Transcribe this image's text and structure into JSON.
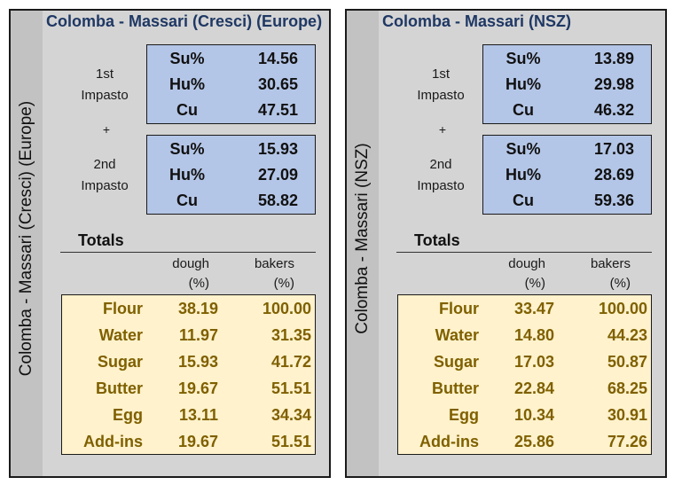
{
  "panels": [
    {
      "title": "Colomba - Massari (Cresci) (Europe)",
      "side_label": "Colomba - Massari (Cresci) (Europe)",
      "impasto1": {
        "label_line1": "1st",
        "label_line2": "Impasto",
        "rows": [
          {
            "key": "Su%",
            "value": "14.56"
          },
          {
            "key": "Hu%",
            "value": "30.65"
          },
          {
            "key": "Cu",
            "value": "47.51"
          }
        ]
      },
      "plus": "+",
      "impasto2": {
        "label_line1": "2nd",
        "label_line2": "Impasto",
        "rows": [
          {
            "key": "Su%",
            "value": "15.93"
          },
          {
            "key": "Hu%",
            "value": "27.09"
          },
          {
            "key": "Cu",
            "value": "58.82"
          }
        ]
      },
      "totals_label": "Totals",
      "col_dough_line1": "dough",
      "col_dough_line2": "(%)",
      "col_bakers_line1": "bakers",
      "col_bakers_line2": "(%)",
      "totals": [
        {
          "name": "Flour",
          "dough": "38.19",
          "bakers": "100.00"
        },
        {
          "name": "Water",
          "dough": "11.97",
          "bakers": "31.35"
        },
        {
          "name": "Sugar",
          "dough": "15.93",
          "bakers": "41.72"
        },
        {
          "name": "Butter",
          "dough": "19.67",
          "bakers": "51.51"
        },
        {
          "name": "Egg",
          "dough": "13.11",
          "bakers": "34.34"
        },
        {
          "name": "Add-ins",
          "dough": "19.67",
          "bakers": "51.51"
        }
      ]
    },
    {
      "title": "Colomba - Massari (NSZ)",
      "side_label": "Colomba - Massari (NSZ)",
      "impasto1": {
        "label_line1": "1st",
        "label_line2": "Impasto",
        "rows": [
          {
            "key": "Su%",
            "value": "13.89"
          },
          {
            "key": "Hu%",
            "value": "29.98"
          },
          {
            "key": "Cu",
            "value": "46.32"
          }
        ]
      },
      "plus": "+",
      "impasto2": {
        "label_line1": "2nd",
        "label_line2": "Impasto",
        "rows": [
          {
            "key": "Su%",
            "value": "17.03"
          },
          {
            "key": "Hu%",
            "value": "28.69"
          },
          {
            "key": "Cu",
            "value": "59.36"
          }
        ]
      },
      "totals_label": "Totals",
      "col_dough_line1": "dough",
      "col_dough_line2": "(%)",
      "col_bakers_line1": "bakers",
      "col_bakers_line2": "(%)",
      "totals": [
        {
          "name": "Flour",
          "dough": "33.47",
          "bakers": "100.00"
        },
        {
          "name": "Water",
          "dough": "14.80",
          "bakers": "44.23"
        },
        {
          "name": "Sugar",
          "dough": "17.03",
          "bakers": "50.87"
        },
        {
          "name": "Butter",
          "dough": "22.84",
          "bakers": "68.25"
        },
        {
          "name": "Egg",
          "dough": "10.34",
          "bakers": "30.91"
        },
        {
          "name": "Add-ins",
          "dough": "25.86",
          "bakers": "77.26"
        }
      ]
    }
  ]
}
